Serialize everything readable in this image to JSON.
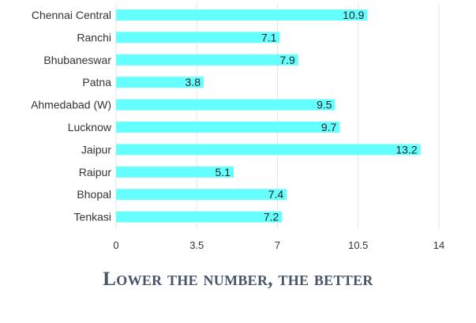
{
  "chart_data": {
    "type": "bar",
    "orientation": "horizontal",
    "categories": [
      "Chennai Central",
      "Ranchi",
      "Bhubaneswar",
      "Patna",
      "Ahmedabad (W)",
      "Lucknow",
      "Jaipur",
      "Raipur",
      "Bhopal",
      "Tenkasi"
    ],
    "values": [
      10.9,
      7.1,
      7.9,
      3.8,
      9.5,
      9.7,
      13.2,
      5.1,
      7.4,
      7.2
    ],
    "value_labels": [
      "10.9",
      "7.1",
      "7.9",
      "3.8",
      "9.5",
      "9.7",
      "13.2",
      "5.1",
      "7.4",
      "7.2"
    ],
    "xlim": [
      0,
      14
    ],
    "xticks": [
      "0",
      "3.5",
      "7",
      "10.5",
      "14"
    ],
    "grid": true,
    "bar_color": "#66ffff",
    "caption": "Lower the number, the better"
  }
}
